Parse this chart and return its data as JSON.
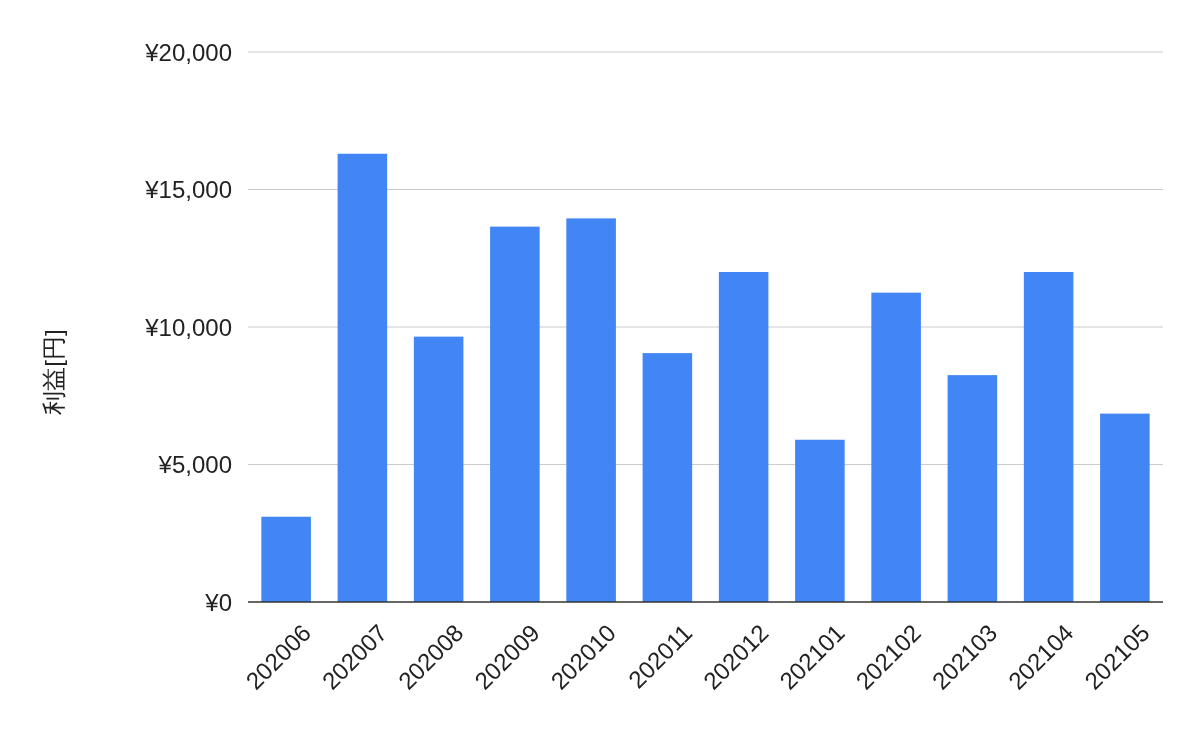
{
  "chart_data": {
    "type": "bar",
    "ylabel": "利益[円]",
    "categories": [
      "202006",
      "202007",
      "202008",
      "202009",
      "202010",
      "202011",
      "202012",
      "202101",
      "202102",
      "202103",
      "202104",
      "202105"
    ],
    "values": [
      3100,
      16300,
      9650,
      13650,
      13950,
      9050,
      12000,
      5900,
      11250,
      8250,
      12000,
      6850
    ],
    "color": "#4285f4",
    "ylim": [
      0,
      20000
    ],
    "yticks": [
      {
        "value": 0,
        "label": "¥0"
      },
      {
        "value": 5000,
        "label": "¥5,000"
      },
      {
        "value": 10000,
        "label": "¥10,000"
      },
      {
        "value": 15000,
        "label": "¥15,000"
      },
      {
        "value": 20000,
        "label": "¥20,000"
      }
    ],
    "grid": "y"
  }
}
